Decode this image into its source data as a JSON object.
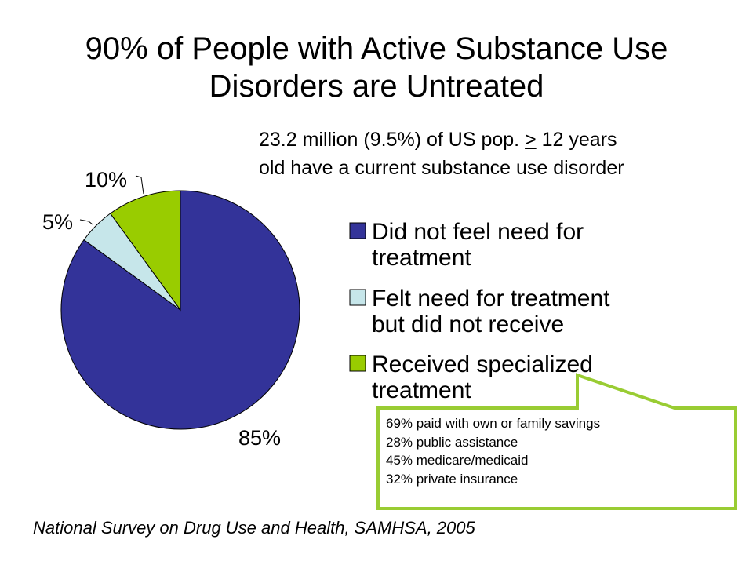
{
  "title_line1": "90% of People with Active Substance Use",
  "title_line2": "Disorders are Untreated",
  "subtitle": {
    "line1_pre": "23.2 million (9.5%) of US pop. ",
    "line1_sym": ">",
    "line1_post": " 12 years",
    "line2": "old have a current substance use disorder"
  },
  "chart_data": {
    "type": "pie",
    "slices": [
      {
        "label": "Did not feel need for treatment",
        "value": 85,
        "display": "85%",
        "color": "#333399"
      },
      {
        "label": "Felt need for treatment but did not receive",
        "value": 5,
        "display": "5%",
        "color": "#c6e6ea"
      },
      {
        "label": "Received specialized treatment",
        "value": 10,
        "display": "10%",
        "color": "#99cc00"
      }
    ],
    "legend": [
      {
        "line1": "Did not feel need for",
        "line2": "treatment",
        "color": "#333399"
      },
      {
        "line1": "Felt need for treatment",
        "line2": "but did not receive",
        "color": "#c6e6ea"
      },
      {
        "line1": "Received specialized",
        "line2": "treatment",
        "color": "#99cc00"
      }
    ],
    "legend_position": "right"
  },
  "callout": {
    "border_color": "#99cc33",
    "lines": [
      "69% paid with own or family savings",
      "28% public assistance",
      "45% medicare/medicaid",
      "32% private insurance"
    ]
  },
  "source": "National Survey on Drug Use and Health, SAMHSA, 2005"
}
